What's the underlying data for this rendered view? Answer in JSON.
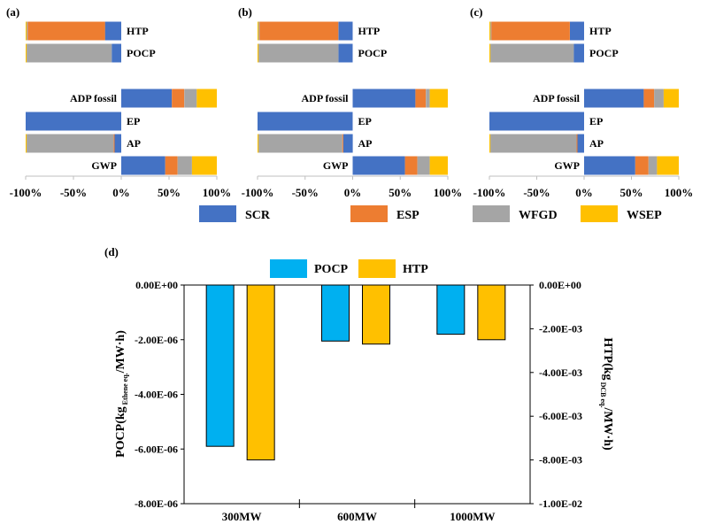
{
  "colors": {
    "SCR": "#4472c4",
    "ESP": "#ed7d31",
    "WFGD": "#a5a5a5",
    "WSEP": "#ffc000",
    "POCP": "#00b0f0",
    "HTP": "#ffc000"
  },
  "legend_top": [
    "SCR",
    "ESP",
    "WFGD",
    "WSEP"
  ],
  "chart_data": [
    {
      "type": "bar",
      "orientation": "horizontal-stacked-diverging",
      "panel_label": "(a)",
      "xlim": [
        -100,
        100
      ],
      "xticks": [
        "-100%",
        "-50%",
        "0%",
        "50%",
        "100%"
      ],
      "categories": [
        "HTP",
        "POCP",
        "ADP fossil",
        "EP",
        "AP",
        "GWP"
      ],
      "series": [
        {
          "name": "SCR",
          "values": [
            -17,
            -10,
            53,
            -100,
            -7,
            46
          ]
        },
        {
          "name": "ESP",
          "values": [
            -81,
            0,
            13,
            0,
            -1,
            13
          ]
        },
        {
          "name": "WFGD",
          "values": [
            -1,
            -89,
            13,
            0,
            -91,
            15
          ]
        },
        {
          "name": "WSEP",
          "values": [
            -1,
            -1,
            21,
            0,
            -1,
            26
          ]
        }
      ],
      "grid": false
    },
    {
      "type": "bar",
      "orientation": "horizontal-stacked-diverging",
      "panel_label": "(b)",
      "xlim": [
        -100,
        100
      ],
      "xticks": [
        "-100%",
        "-50%",
        "0%",
        "50%",
        "100%"
      ],
      "categories": [
        "HTP",
        "POCP",
        "ADP fossil",
        "EP",
        "AP",
        "GWP"
      ],
      "series": [
        {
          "name": "SCR",
          "values": [
            -15,
            -15,
            66,
            -100,
            -10,
            55
          ]
        },
        {
          "name": "ESP",
          "values": [
            -83,
            0,
            11,
            0,
            -1,
            13
          ]
        },
        {
          "name": "WFGD",
          "values": [
            -1,
            -84,
            4,
            0,
            -88,
            13
          ]
        },
        {
          "name": "WSEP",
          "values": [
            -1,
            -1,
            19,
            0,
            -1,
            19
          ]
        }
      ],
      "grid": false
    },
    {
      "type": "bar",
      "orientation": "horizontal-stacked-diverging",
      "panel_label": "(c)",
      "xlim": [
        -100,
        100
      ],
      "xticks": [
        "-100%",
        "-50%",
        "0%",
        "50%",
        "100%"
      ],
      "categories": [
        "HTP",
        "POCP",
        "ADP fossil",
        "EP",
        "AP",
        "GWP"
      ],
      "series": [
        {
          "name": "SCR",
          "values": [
            -15,
            -11,
            63,
            -100,
            -7,
            54
          ]
        },
        {
          "name": "ESP",
          "values": [
            -83,
            0,
            11,
            0,
            -1,
            14
          ]
        },
        {
          "name": "WFGD",
          "values": [
            -1,
            -88,
            10,
            0,
            -91,
            9
          ]
        },
        {
          "name": "WSEP",
          "values": [
            -1,
            -1,
            16,
            0,
            -1,
            23
          ]
        }
      ],
      "grid": false
    },
    {
      "type": "bar",
      "panel_label": "(d)",
      "categories": [
        "300MW",
        "600MW",
        "1000MW"
      ],
      "series": [
        {
          "name": "POCP",
          "axis": "left",
          "values": [
            -5.9e-06,
            -2.05e-06,
            -1.8e-06
          ]
        },
        {
          "name": "HTP",
          "axis": "right",
          "values": [
            -0.008,
            -0.0027,
            -0.0025
          ]
        }
      ],
      "ylabel": "POCP(kg Ethene eq./MW·h)",
      "ylabel_main": "POCP(kg",
      "ylabel_sub": "Ethene eq.",
      "ylabel_tail": "/MW·h)",
      "ylim": [
        -8e-06,
        0
      ],
      "yticks": [
        "0.00E+00",
        "-2.00E-06",
        "-4.00E-06",
        "-6.00E-06",
        "-8.00E-06"
      ],
      "y2label": "HTP(kg DCB eq./MW·h)",
      "y2label_main": "HTP(kg",
      "y2label_sub": "DCB eq.",
      "y2label_tail": "/MW·h)",
      "y2lim": [
        -0.01,
        0
      ],
      "y2ticks": [
        "0.00E+00",
        "-2.00E-03",
        "-4.00E-03",
        "-6.00E-03",
        "-8.00E-03",
        "-1.00E-02"
      ],
      "legend": [
        "POCP",
        "HTP"
      ],
      "legend_position": "top",
      "grid": false
    }
  ]
}
